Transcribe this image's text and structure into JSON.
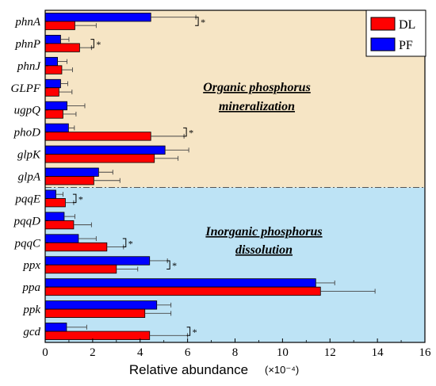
{
  "chart_data": {
    "type": "bar",
    "orientation": "horizontal",
    "categories": [
      "phnA",
      "phnP",
      "phnJ",
      "GLPF",
      "ugpQ",
      "phoD",
      "glpK",
      "glpA",
      "pqqE",
      "pqqD",
      "pqqC",
      "ppx",
      "ppa",
      "ppk",
      "gcd"
    ],
    "series": [
      {
        "name": "DL",
        "color": "#ff0000",
        "values": [
          1.25,
          1.45,
          0.7,
          0.58,
          0.75,
          4.45,
          4.6,
          2.05,
          0.85,
          1.2,
          2.6,
          3.0,
          11.6,
          4.2,
          4.4
        ],
        "errors": [
          0.9,
          0.5,
          0.45,
          0.55,
          0.55,
          1.4,
          1.0,
          1.1,
          0.35,
          0.75,
          0.7,
          0.9,
          2.3,
          1.1,
          1.6
        ]
      },
      {
        "name": "PF",
        "color": "#0000ff",
        "values": [
          4.45,
          0.65,
          0.52,
          0.65,
          0.92,
          0.98,
          5.05,
          2.25,
          0.45,
          0.8,
          1.4,
          4.4,
          11.4,
          4.7,
          0.9
        ],
        "errors": [
          1.9,
          0.35,
          0.4,
          0.3,
          0.75,
          0.25,
          1.0,
          0.6,
          0.3,
          0.45,
          0.75,
          0.75,
          0.8,
          0.6,
          0.85
        ]
      }
    ],
    "significant": [
      "phnA",
      "phnP",
      "phoD",
      "pqqE",
      "pqqC",
      "ppx",
      "gcd"
    ],
    "significance_mark": "*",
    "groups": [
      {
        "label_line1": "Organic phosphorus",
        "label_line2": "mineralization",
        "color": "#f6e5c5",
        "categories": [
          "phnA",
          "phnP",
          "phnJ",
          "GLPF",
          "ugpQ",
          "phoD",
          "glpK",
          "glpA"
        ]
      },
      {
        "label_line1": "Inorganic phosphorus",
        "label_line2": "dissolution",
        "color": "#bde3f5",
        "categories": [
          "pqqE",
          "pqqD",
          "pqqC",
          "ppx",
          "ppa",
          "ppk",
          "gcd"
        ]
      }
    ],
    "xlabel": "Relative abundance",
    "xunit": "(×10⁻⁴)",
    "xlim": [
      0,
      16
    ],
    "xticks": [
      0,
      2,
      4,
      6,
      8,
      10,
      12,
      14,
      16
    ],
    "legend_position": "top-right"
  }
}
